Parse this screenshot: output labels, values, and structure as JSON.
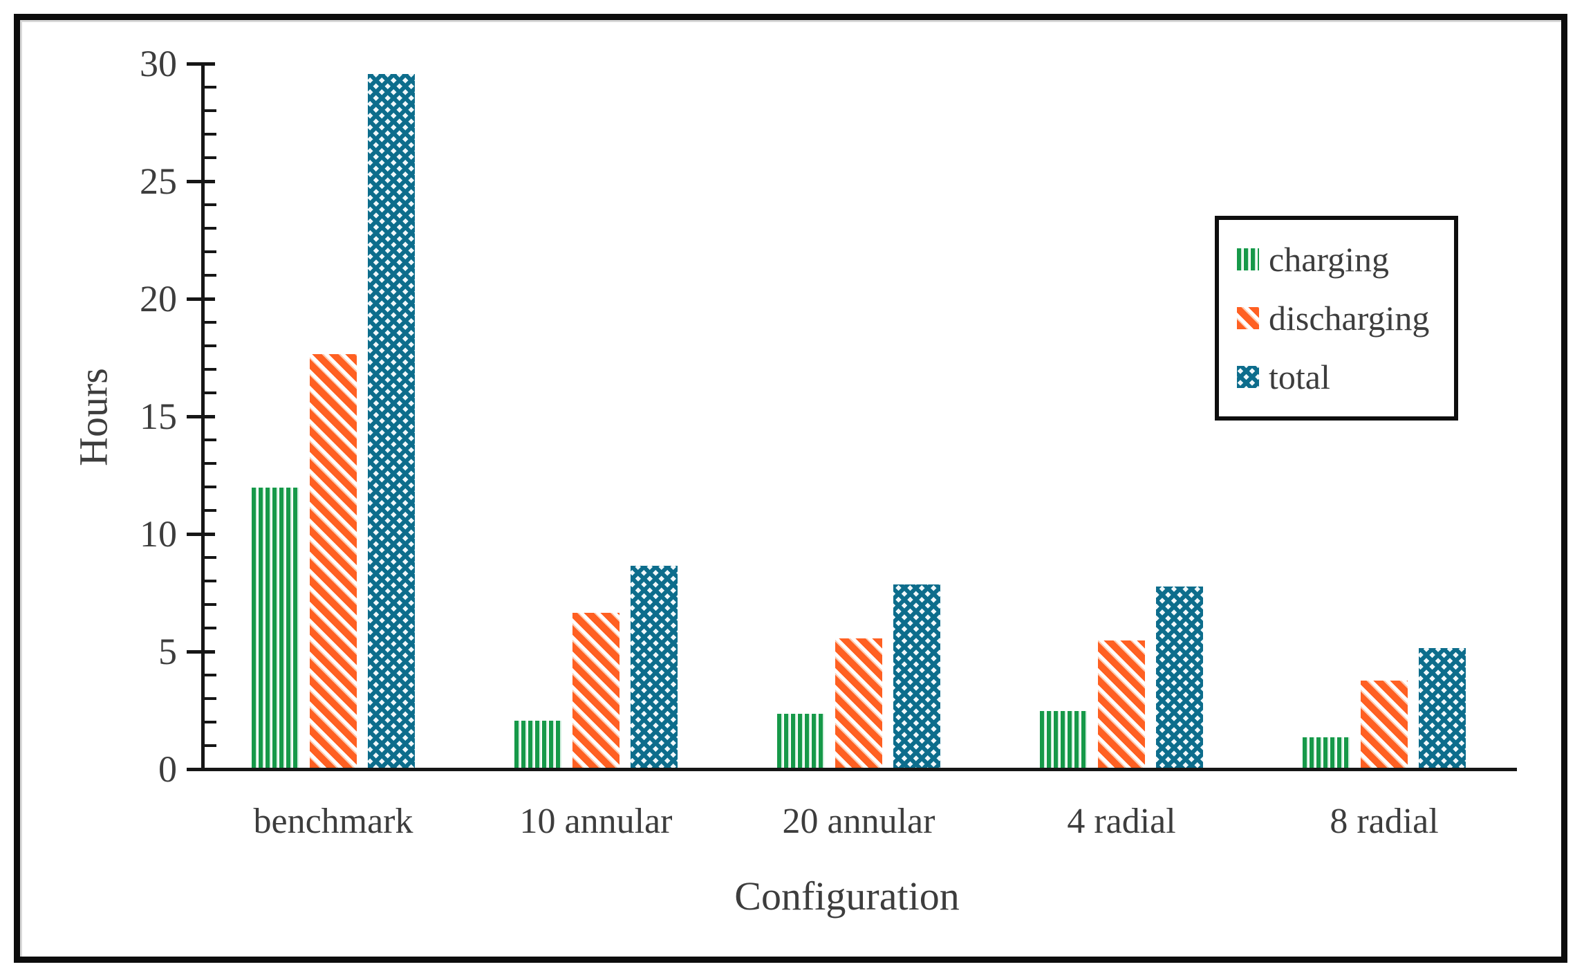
{
  "chart_data": {
    "type": "bar",
    "title": "",
    "xlabel": "Configuration",
    "ylabel": "Hours",
    "categories": [
      "benchmark",
      "10 annular",
      "20 annular",
      "4 radial",
      "8 radial"
    ],
    "series": [
      {
        "name": "charging",
        "pattern": "vertical-stripes",
        "color": "#169949",
        "values": [
          11.9,
          2.0,
          2.3,
          2.4,
          1.3
        ]
      },
      {
        "name": "discharging",
        "pattern": "diagonal-stripes",
        "color": "#ff6022",
        "values": [
          17.6,
          6.6,
          5.5,
          5.4,
          3.7
        ]
      },
      {
        "name": "total",
        "pattern": "crosshatch",
        "color": "#0d6d8c",
        "values": [
          29.5,
          8.6,
          7.8,
          7.7,
          5.1
        ]
      }
    ],
    "ylim": [
      0,
      30
    ],
    "ytick_major_step": 5,
    "ytick_minor_step": 1,
    "grid": false,
    "legend_position": "inside-top-right"
  },
  "colors": {
    "text": "#3d3d3d",
    "axis": "#161616",
    "frame_border": "#0c0c0c",
    "background": "#ffffff"
  }
}
